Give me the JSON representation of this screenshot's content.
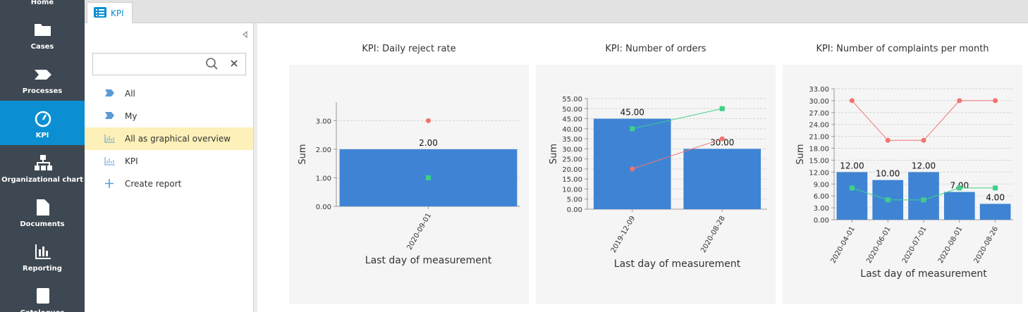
{
  "nav": [
    "Home",
    "Cases",
    "Processes",
    "KPI",
    "Organizational chart",
    "Documents",
    "Reporting",
    "Catalogues"
  ],
  "tab": "KPI",
  "menu": [
    "All",
    "My",
    "All as graphical overview",
    "KPI",
    "Create report"
  ],
  "chart_data": [
    {
      "type": "bar",
      "title": "KPI: Daily reject rate",
      "xlabel": "Last day of measurement",
      "ylabel": "Sum",
      "categories": [
        "2020-09-01"
      ],
      "series": [
        {
          "color": "#3f84d4",
          "values": [
            2
          ],
          "value_labels": [
            "2.00"
          ]
        },
        {
          "type": "line",
          "color": "#f07470",
          "values": [
            3
          ]
        },
        {
          "type": "line",
          "color": "#3ed08a",
          "values": [
            1
          ]
        }
      ],
      "ylim": [
        0,
        3.65
      ],
      "yticks": [
        {
          "value": 0,
          "label": "0.00"
        },
        {
          "value": 1,
          "label": "1.00"
        },
        {
          "value": 2,
          "label": "2.00"
        },
        {
          "value": 3,
          "label": "3.00"
        }
      ],
      "grid": true
    },
    {
      "type": "bar",
      "title": "KPI: Number of orders",
      "xlabel": "Last day of measurement",
      "ylabel": "Sum",
      "categories": [
        "2019-12-09",
        "2020-08-28"
      ],
      "series": [
        {
          "color": "#3f84d4",
          "values": [
            45,
            30
          ],
          "value_labels": [
            "45.00",
            "30.00"
          ]
        },
        {
          "type": "line",
          "color": "#f07470",
          "values": [
            20,
            35
          ]
        },
        {
          "type": "line",
          "color": "#3ed08a",
          "values": [
            40,
            50
          ]
        }
      ],
      "ylim": [
        0,
        55
      ],
      "yticks": [
        {
          "value": 0,
          "label": "0.00"
        },
        {
          "value": 5,
          "label": "5.00"
        },
        {
          "value": 10,
          "label": "10.00"
        },
        {
          "value": 15,
          "label": "15.00"
        },
        {
          "value": 20,
          "label": "20.00"
        },
        {
          "value": 25,
          "label": "25.00"
        },
        {
          "value": 30,
          "label": "30.00"
        },
        {
          "value": 35,
          "label": "35.00"
        },
        {
          "value": 40,
          "label": "40.00"
        },
        {
          "value": 45,
          "label": "45.00"
        },
        {
          "value": 50,
          "label": "50.00"
        },
        {
          "value": 55,
          "label": "55.00"
        }
      ],
      "grid": true
    },
    {
      "type": "bar",
      "title": "KPI: Number of complaints per month",
      "xlabel": "Last day of measurement",
      "ylabel": "Sum",
      "categories": [
        "2020-04-01",
        "2020-06-01",
        "2020-07-01",
        "2020-08-01",
        "2020-08-26"
      ],
      "series": [
        {
          "color": "#3f84d4",
          "values": [
            12,
            10,
            12,
            7,
            4
          ],
          "value_labels": [
            "12.00",
            "10.00",
            "12.00",
            "7.00",
            "4.00"
          ]
        },
        {
          "type": "line",
          "color": "#f07470",
          "values": [
            30,
            20,
            20,
            30,
            30
          ]
        },
        {
          "type": "line",
          "color": "#3ed08a",
          "values": [
            8,
            5,
            5,
            8,
            8
          ]
        }
      ],
      "ylim": [
        0,
        33
      ],
      "yticks": [
        {
          "value": 0,
          "label": "0.00"
        },
        {
          "value": 3,
          "label": "3.00"
        },
        {
          "value": 6,
          "label": "6.00"
        },
        {
          "value": 9,
          "label": "9.00"
        },
        {
          "value": 12,
          "label": "12.00"
        },
        {
          "value": 15,
          "label": "15.00"
        },
        {
          "value": 18,
          "label": "18.00"
        },
        {
          "value": 21,
          "label": "21.00"
        },
        {
          "value": 24,
          "label": "24.00"
        },
        {
          "value": 27,
          "label": "27.00"
        },
        {
          "value": 30,
          "label": "30.00"
        },
        {
          "value": 33,
          "label": "33.00"
        }
      ],
      "grid": true
    }
  ]
}
